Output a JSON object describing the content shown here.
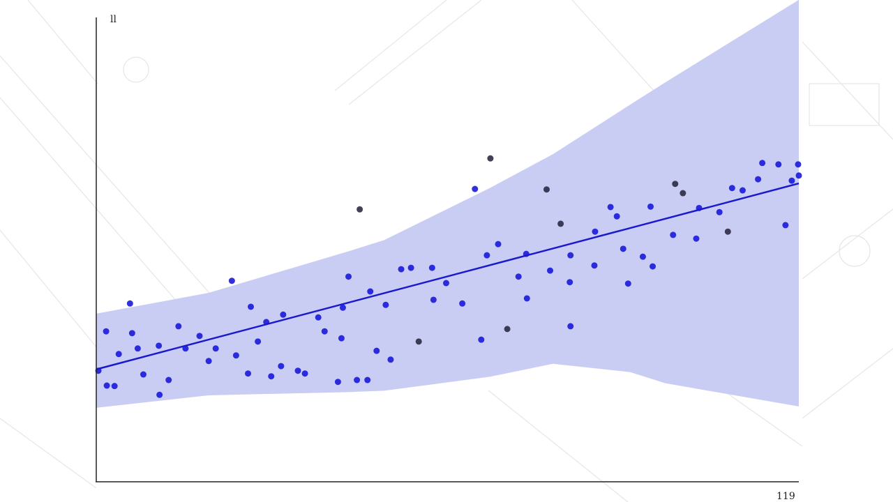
{
  "chart_data": {
    "type": "scatter",
    "x_label": "119",
    "y_label": "ll",
    "xlim": [
      0,
      100
    ],
    "ylim": [
      0,
      100
    ],
    "band": {
      "color": "#c9cdf3",
      "x": [
        0,
        16,
        36,
        41,
        56,
        65,
        76,
        81,
        100
      ],
      "upper": [
        36.1,
        40.6,
        49.6,
        52,
        63.2,
        70.5,
        81.2,
        86,
        103.8
      ],
      "lower": [
        15.8,
        18.5,
        19.2,
        19.5,
        22.5,
        25.3,
        23.5,
        21.1,
        16.1
      ]
    },
    "fit": {
      "color": "#1a1acc",
      "x": [
        0,
        100
      ],
      "y": [
        24.1,
        64.2
      ]
    },
    "series": [
      {
        "color": "#1a1adc",
        "x": [
          0.3,
          1.4,
          1.5,
          2.6,
          3.2,
          4.8,
          5.1,
          5.9,
          6.7,
          9.0,
          8.9,
          10.3,
          11.7,
          12.7,
          14.7,
          16.0,
          19.3,
          17.0,
          19.9,
          21.6,
          22.0,
          23.0,
          24.2,
          24.9,
          26.3,
          26.6,
          28.7,
          29.7,
          31.6,
          32.5,
          34.4,
          34.9,
          35.1,
          35.9,
          37.1,
          38.6,
          39.0,
          39.9,
          41.2,
          41.9,
          43.4,
          44.8,
          47.8,
          48.0,
          49.8,
          52.1,
          53.9,
          54.8,
          55.6,
          57.2,
          60.1,
          61.2,
          61.3,
          64.6,
          67.4,
          67.5,
          67.5,
          70.9,
          71.0,
          73.2,
          74.1,
          75.0,
          75.7,
          77.8,
          78.9,
          79.2,
          82.1,
          85.4,
          85.8,
          88.7,
          90.5,
          92.0,
          94.2,
          94.8,
          97.1,
          98.1,
          99.0,
          99.9,
          100
        ],
        "y": [
          23.8,
          32.3,
          20.6,
          20.5,
          27.4,
          38.3,
          31.9,
          28.6,
          23.0,
          18.6,
          29.2,
          21.8,
          33.4,
          28.6,
          31.3,
          25.9,
          43.2,
          28.6,
          27.1,
          23.2,
          37.6,
          30.1,
          34.3,
          22.6,
          24.8,
          35.9,
          23.8,
          23.2,
          35.3,
          32.3,
          21.4,
          30.8,
          37.4,
          44.1,
          21.8,
          21.8,
          40.9,
          28.1,
          38.0,
          26.2,
          45.7,
          46.0,
          46.0,
          39.1,
          42.7,
          38.3,
          63.0,
          30.5,
          48.7,
          51.1,
          44.1,
          49.0,
          39.4,
          45.4,
          42.9,
          33.4,
          48.7,
          46.5,
          53.8,
          59.1,
          57.1,
          50.1,
          42.6,
          48.4,
          59.2,
          46.3,
          53.1,
          52.3,
          58.9,
          58.0,
          63.2,
          62.7,
          65.1,
          68.6,
          68.3,
          55.2,
          64.8,
          68.3,
          65.9
        ]
      },
      {
        "color": "#2b2b45",
        "x": [
          37.5,
          45.9,
          56.1,
          58.5,
          64.1,
          66.1,
          82.4,
          83.5,
          89.9
        ],
        "y": [
          58.6,
          30.1,
          69.6,
          32.8,
          62.9,
          55.5,
          64.1,
          62.1,
          53.8
        ]
      }
    ]
  }
}
